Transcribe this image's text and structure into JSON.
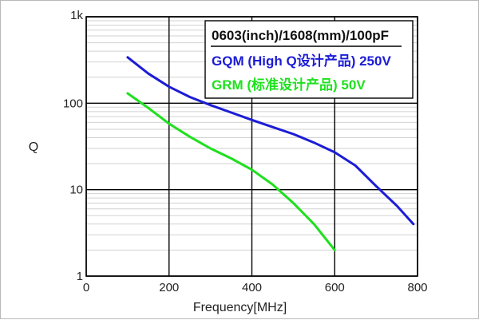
{
  "chart_data": {
    "type": "line",
    "xlabel": "Frequency[MHz]",
    "ylabel": "Q",
    "xlim": [
      0,
      800
    ],
    "ylim": [
      1,
      1000
    ],
    "yscale": "log",
    "grid": true,
    "x_ticks": [
      0,
      200,
      400,
      600,
      800
    ],
    "x_tick_labels": [
      "0",
      "200",
      "400",
      "600",
      "800"
    ],
    "y_ticks": [
      1,
      10,
      100,
      1000
    ],
    "y_tick_labels": [
      "1",
      "10",
      "100",
      "1k"
    ],
    "legend": {
      "placement": "top-right",
      "title": "0603(inch)/1608(mm)/100pF"
    },
    "series": [
      {
        "name": "GQM (High Q设计产品) 250V",
        "color": "#1c1cd6",
        "x": [
          100,
          150,
          200,
          250,
          300,
          350,
          400,
          450,
          500,
          550,
          600,
          650,
          700,
          750,
          790
        ],
        "y": [
          340,
          220,
          155,
          118,
          95,
          78,
          64,
          53,
          44,
          35,
          27,
          19,
          11,
          6.5,
          4
        ]
      },
      {
        "name": "GRM (标准设计产品) 50V",
        "color": "#1ee01e",
        "x": [
          100,
          150,
          200,
          250,
          300,
          350,
          400,
          450,
          500,
          550,
          600
        ],
        "y": [
          130,
          88,
          58,
          41,
          30,
          23,
          17,
          11.5,
          7,
          4,
          2
        ]
      }
    ]
  }
}
